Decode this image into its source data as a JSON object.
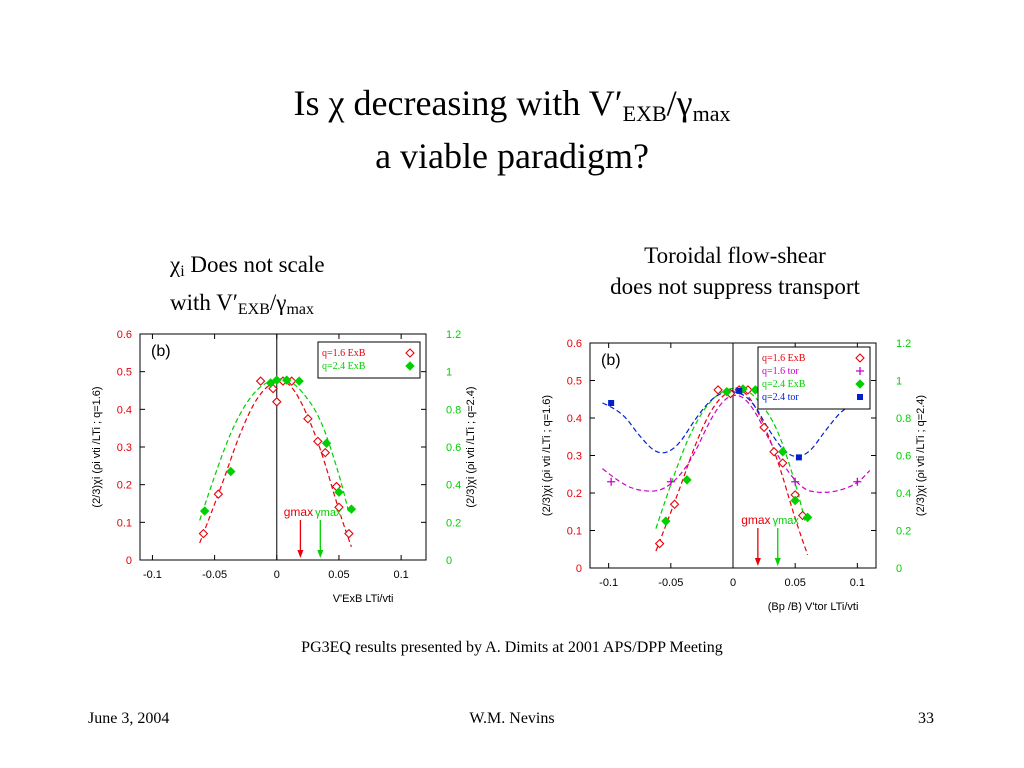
{
  "slide": {
    "title_line1_pre": "Is ",
    "title_chi": "χ",
    "title_line1_mid": " decreasing with V′",
    "title_sub_exb": "EXB",
    "title_slash_gamma": "/γ",
    "title_sub_max": "max",
    "title_line2": "a viable paradigm?",
    "left_caption_chi": "χ",
    "left_caption_sub_i": "i",
    "left_caption_rest": " Does not scale",
    "left_caption_line2_pre": "with V′",
    "left_caption_sub_exb": "EXB",
    "left_caption_slash_gamma": "/γ",
    "left_caption_sub_max": "max",
    "right_caption_line1": "Toroidal flow-shear",
    "right_caption_line2": "does not suppress transport",
    "footer_note": "PG3EQ results presented by A. Dimits at 2001 APS/DPP Meeting",
    "footer_date": "June 3, 2004",
    "footer_author": "W.M. Nevins",
    "footer_page": "33"
  },
  "colors": {
    "red": "#e8000b",
    "green": "#00d000",
    "magenta": "#cc00cc",
    "blue": "#0020d0",
    "axis": "#000000"
  },
  "chart_data": [
    {
      "type": "scatter",
      "panel_label": "(b)",
      "xlim": [
        -0.11,
        0.12
      ],
      "ylim_left": [
        0,
        0.6
      ],
      "ylim_right": [
        0,
        1.2
      ],
      "x_ticks": [
        "-0.1",
        "-0.05",
        "0",
        "0.05",
        "0.1"
      ],
      "y_left_ticks": [
        "0",
        "0.1",
        "0.2",
        "0.3",
        "0.4",
        "0.5",
        "0.6"
      ],
      "y_right_ticks": [
        "0",
        "0.2",
        "0.4",
        "0.6",
        "0.8",
        "1",
        "1.2"
      ],
      "ylabel_left": "(2/3)χi (ρi vti /LTi ; q=1.6)",
      "ylabel_right": "(2/3)χi (ρi vti /LTi ; q=2.4)",
      "xlabel": "V'ExB LTi/vti",
      "legend_position": "top-right",
      "annotation_g": "gmax",
      "annotation_gamma": "γmax",
      "g_max_x": 0.019,
      "gamma_max_x": 0.035,
      "series": [
        {
          "name": "q=1.6 ExB",
          "color": "red",
          "marker": "diamond-open",
          "axis": "left",
          "x": [
            -0.059,
            -0.047,
            -0.013,
            -0.003,
            0.0,
            0.005,
            0.012,
            0.025,
            0.033,
            0.039,
            0.048,
            0.05,
            0.058
          ],
          "y": [
            0.07,
            0.175,
            0.475,
            0.455,
            0.42,
            0.475,
            0.475,
            0.375,
            0.315,
            0.285,
            0.195,
            0.14,
            0.07
          ]
        },
        {
          "name": "q=2.4 ExB",
          "color": "green",
          "marker": "diamond-filled",
          "axis": "right",
          "x": [
            -0.058,
            -0.037,
            -0.005,
            0.0,
            0.008,
            0.018,
            0.04,
            0.05,
            0.06
          ],
          "y": [
            0.26,
            0.47,
            0.94,
            0.955,
            0.955,
            0.95,
            0.62,
            0.36,
            0.27
          ]
        }
      ],
      "fits": [
        {
          "color": "red",
          "axis": "left",
          "x": [
            -0.062,
            -0.045,
            -0.03,
            -0.015,
            0.0,
            0.01,
            0.02,
            0.035,
            0.05,
            0.06
          ],
          "y": [
            0.045,
            0.19,
            0.335,
            0.44,
            0.48,
            0.47,
            0.42,
            0.3,
            0.13,
            0.035
          ]
        },
        {
          "color": "green",
          "axis": "right",
          "x": [
            -0.062,
            -0.045,
            -0.03,
            -0.015,
            0.0,
            0.01,
            0.02,
            0.035,
            0.05,
            0.058
          ],
          "y": [
            0.21,
            0.55,
            0.78,
            0.92,
            0.965,
            0.955,
            0.9,
            0.76,
            0.46,
            0.25
          ]
        }
      ]
    },
    {
      "type": "scatter",
      "panel_label": "(b)",
      "xlim": [
        -0.115,
        0.115
      ],
      "ylim_left": [
        0,
        0.6
      ],
      "ylim_right": [
        0,
        1.2
      ],
      "x_ticks": [
        "-0.1",
        "-0.05",
        "0",
        "0.05",
        "0.1"
      ],
      "y_left_ticks": [
        "0",
        "0.1",
        "0.2",
        "0.3",
        "0.4",
        "0.5",
        "0.6"
      ],
      "y_right_ticks": [
        "0",
        "0.2",
        "0.4",
        "0.6",
        "0.8",
        "1",
        "1.2"
      ],
      "ylabel_left": "(2/3)χi (ρi vti /LTi ; q=1.6)",
      "ylabel_right": "(2/3)χi (ρi vti /LTi ; q=2.4)",
      "xlabel": "(Bp /B) V'tor LTi/vti",
      "legend_position": "top-right",
      "annotation_g": "gmax",
      "annotation_gamma": "γmax",
      "g_max_x": 0.02,
      "gamma_max_x": 0.036,
      "series": [
        {
          "name": "q=1.6 ExB",
          "color": "red",
          "marker": "diamond-open",
          "axis": "left",
          "x": [
            -0.059,
            -0.047,
            -0.012,
            -0.002,
            0.005,
            0.012,
            0.025,
            0.033,
            0.04,
            0.05,
            0.056
          ],
          "y": [
            0.065,
            0.17,
            0.475,
            0.465,
            0.475,
            0.475,
            0.375,
            0.31,
            0.28,
            0.195,
            0.14
          ]
        },
        {
          "name": "q=1.6 tor",
          "color": "magenta",
          "marker": "plus",
          "axis": "left",
          "x": [
            -0.098,
            -0.05,
            0.05,
            0.1
          ],
          "y": [
            0.23,
            0.23,
            0.23,
            0.23
          ]
        },
        {
          "name": "q=2.4 ExB",
          "color": "green",
          "marker": "diamond-filled",
          "axis": "right",
          "x": [
            -0.054,
            -0.037,
            -0.005,
            0.008,
            0.018,
            0.04,
            0.05,
            0.06
          ],
          "y": [
            0.25,
            0.47,
            0.94,
            0.955,
            0.95,
            0.62,
            0.36,
            0.27
          ]
        },
        {
          "name": "q=2.4 tor",
          "color": "blue",
          "marker": "square-filled",
          "axis": "right",
          "x": [
            -0.098,
            0.005,
            0.053,
            0.1
          ],
          "y": [
            0.88,
            0.945,
            0.59,
            0.88
          ]
        }
      ],
      "fits": [
        {
          "color": "red",
          "axis": "left",
          "x": [
            -0.062,
            -0.045,
            -0.03,
            -0.015,
            0.0,
            0.01,
            0.02,
            0.035,
            0.05,
            0.06
          ],
          "y": [
            0.045,
            0.19,
            0.335,
            0.44,
            0.48,
            0.47,
            0.42,
            0.3,
            0.13,
            0.035
          ]
        },
        {
          "color": "green",
          "axis": "right",
          "x": [
            -0.062,
            -0.045,
            -0.03,
            -0.015,
            0.0,
            0.01,
            0.02,
            0.035,
            0.05,
            0.058
          ],
          "y": [
            0.21,
            0.55,
            0.78,
            0.92,
            0.965,
            0.955,
            0.9,
            0.76,
            0.46,
            0.25
          ]
        },
        {
          "color": "magenta",
          "axis": "left",
          "x": [
            -0.105,
            -0.09,
            -0.075,
            -0.055,
            -0.035,
            -0.015,
            0.0,
            0.015,
            0.035,
            0.055,
            0.07,
            0.085,
            0.1,
            0.11
          ],
          "y": [
            0.265,
            0.225,
            0.205,
            0.205,
            0.275,
            0.42,
            0.47,
            0.44,
            0.3,
            0.21,
            0.2,
            0.205,
            0.225,
            0.26
          ]
        },
        {
          "color": "blue",
          "axis": "right",
          "x": [
            -0.105,
            -0.09,
            -0.075,
            -0.06,
            -0.045,
            -0.03,
            -0.015,
            0.0,
            0.015,
            0.03,
            0.045,
            0.06,
            0.075,
            0.09,
            0.105
          ],
          "y": [
            0.88,
            0.84,
            0.7,
            0.6,
            0.64,
            0.8,
            0.92,
            0.95,
            0.9,
            0.72,
            0.59,
            0.6,
            0.74,
            0.86,
            0.88
          ]
        }
      ]
    }
  ]
}
